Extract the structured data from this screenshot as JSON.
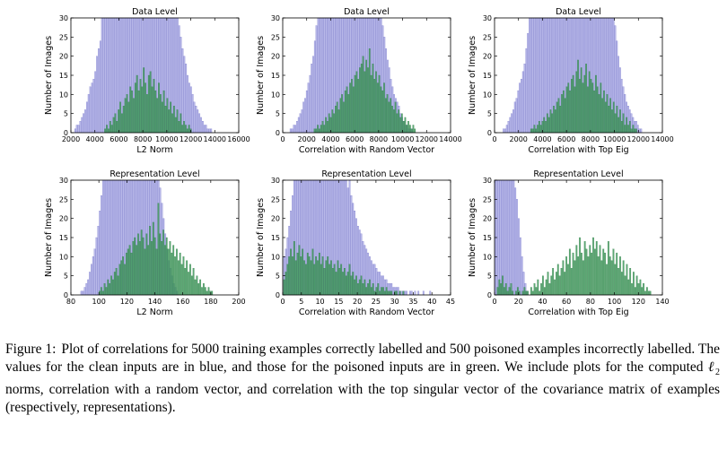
{
  "chart_data": [
    {
      "type": "bar",
      "title": "Data Level",
      "xlabel": "L2 Norm",
      "ylabel": "Number of Images",
      "xlim": [
        2000,
        16000
      ],
      "ylim": [
        0,
        30
      ],
      "xticks": [
        2000,
        4000,
        6000,
        8000,
        10000,
        12000,
        14000,
        16000
      ],
      "yticks": [
        0,
        5,
        10,
        15,
        20,
        25,
        30
      ],
      "grid": false,
      "bin_width": 140,
      "series": [
        {
          "name": "clean",
          "color": "#8c8cdc",
          "x_start": 2300,
          "values": [
            1,
            2,
            2,
            3,
            4,
            5,
            6,
            8,
            10,
            12,
            13,
            14,
            16,
            20,
            22,
            24,
            30,
            30,
            30,
            30,
            30,
            30,
            30,
            30,
            30,
            30,
            30,
            30,
            30,
            30,
            30,
            30,
            30,
            30,
            30,
            30,
            30,
            30,
            30,
            30,
            30,
            30,
            30,
            30,
            30,
            30,
            30,
            30,
            30,
            30,
            30,
            30,
            30,
            30,
            30,
            30,
            30,
            30,
            30,
            30,
            30,
            30,
            28,
            25,
            22,
            20,
            18,
            15,
            13,
            12,
            10,
            8,
            7,
            6,
            5,
            4,
            3,
            2,
            2,
            1,
            1,
            1
          ]
        },
        {
          "name": "poisoned",
          "color": "#3f9a5c",
          "x_start": 4800,
          "values": [
            1,
            2,
            1,
            3,
            2,
            4,
            5,
            3,
            6,
            8,
            5,
            7,
            9,
            10,
            8,
            12,
            11,
            9,
            13,
            15,
            11,
            14,
            12,
            17,
            13,
            10,
            15,
            16,
            12,
            14,
            11,
            9,
            13,
            10,
            8,
            11,
            7,
            9,
            6,
            8,
            5,
            7,
            4,
            6,
            3,
            5,
            2,
            3,
            2,
            1,
            2,
            1
          ]
        }
      ]
    },
    {
      "type": "bar",
      "title": "Data Level",
      "xlabel": "Correlation with Random Vector",
      "ylabel": "Number of Images",
      "xlim": [
        0,
        14000
      ],
      "ylim": [
        0,
        30
      ],
      "xticks": [
        0,
        2000,
        4000,
        6000,
        8000,
        10000,
        12000,
        14000
      ],
      "yticks": [
        0,
        5,
        10,
        15,
        20,
        25,
        30
      ],
      "grid": false,
      "bin_width": 135,
      "series": [
        {
          "name": "clean",
          "color": "#8c8cdc",
          "x_start": 600,
          "values": [
            1,
            1,
            2,
            2,
            3,
            4,
            5,
            6,
            8,
            9,
            11,
            13,
            15,
            18,
            20,
            24,
            28,
            30,
            30,
            30,
            30,
            30,
            30,
            30,
            30,
            30,
            30,
            30,
            30,
            30,
            30,
            30,
            30,
            30,
            30,
            30,
            30,
            30,
            30,
            30,
            30,
            30,
            30,
            30,
            30,
            30,
            30,
            30,
            30,
            30,
            30,
            30,
            30,
            30,
            30,
            30,
            30,
            28,
            25,
            22,
            19,
            17,
            14,
            12,
            10,
            9,
            8,
            7,
            5,
            4,
            3,
            2,
            2,
            1,
            1,
            1
          ]
        },
        {
          "name": "poisoned",
          "color": "#3f9a5c",
          "x_start": 2600,
          "values": [
            1,
            1,
            2,
            1,
            2,
            3,
            2,
            4,
            3,
            5,
            4,
            6,
            5,
            7,
            8,
            6,
            9,
            10,
            8,
            11,
            12,
            10,
            13,
            14,
            12,
            15,
            16,
            14,
            17,
            18,
            20,
            16,
            19,
            17,
            22,
            15,
            18,
            14,
            16,
            13,
            15,
            12,
            11,
            13,
            9,
            10,
            8,
            9,
            7,
            6,
            8,
            5,
            6,
            4,
            5,
            3,
            4,
            2,
            3,
            2,
            1,
            2,
            1
          ]
        }
      ]
    },
    {
      "type": "bar",
      "title": "Data Level",
      "xlabel": "Correlation with Top Eig",
      "ylabel": "Number of Images",
      "xlim": [
        0,
        14000
      ],
      "ylim": [
        0,
        30
      ],
      "xticks": [
        0,
        2000,
        4000,
        6000,
        8000,
        10000,
        12000,
        14000
      ],
      "yticks": [
        0,
        5,
        10,
        15,
        20,
        25,
        30
      ],
      "grid": false,
      "bin_width": 135,
      "series": [
        {
          "name": "clean",
          "color": "#8c8cdc",
          "x_start": 700,
          "values": [
            1,
            1,
            2,
            3,
            4,
            5,
            6,
            8,
            9,
            11,
            13,
            14,
            16,
            18,
            22,
            26,
            30,
            30,
            30,
            30,
            30,
            30,
            30,
            30,
            30,
            30,
            30,
            30,
            30,
            30,
            30,
            30,
            30,
            30,
            30,
            30,
            30,
            30,
            30,
            30,
            30,
            30,
            30,
            30,
            30,
            30,
            30,
            30,
            30,
            30,
            30,
            30,
            30,
            30,
            30,
            30,
            30,
            30,
            30,
            30,
            30,
            30,
            30,
            30,
            30,
            30,
            30,
            30,
            30,
            28,
            24,
            20,
            17,
            14,
            12,
            10,
            8,
            7,
            6,
            5,
            4,
            3,
            3,
            2,
            1,
            1
          ]
        },
        {
          "name": "poisoned",
          "color": "#3f9a5c",
          "x_start": 3000,
          "values": [
            1,
            1,
            2,
            1,
            2,
            3,
            2,
            3,
            4,
            3,
            5,
            4,
            6,
            5,
            7,
            6,
            8,
            9,
            7,
            10,
            11,
            9,
            12,
            13,
            11,
            14,
            15,
            12,
            16,
            19,
            14,
            17,
            13,
            15,
            18,
            12,
            16,
            14,
            13,
            11,
            15,
            12,
            10,
            13,
            9,
            11,
            8,
            10,
            7,
            9,
            6,
            8,
            5,
            7,
            4,
            6,
            3,
            5,
            2,
            4,
            2,
            3,
            1,
            2,
            1,
            1
          ]
        }
      ]
    },
    {
      "type": "bar",
      "title": "Representation Level",
      "xlabel": "L2 Norm",
      "ylabel": "Number of Images",
      "xlim": [
        80,
        200
      ],
      "ylim": [
        0,
        30
      ],
      "xticks": [
        80,
        100,
        120,
        140,
        160,
        180,
        200
      ],
      "yticks": [
        0,
        5,
        10,
        15,
        20,
        25,
        30
      ],
      "grid": false,
      "bin_width": 1.2,
      "series": [
        {
          "name": "clean",
          "color": "#8c8cdc",
          "x_start": 87,
          "values": [
            1,
            1,
            2,
            3,
            4,
            6,
            8,
            10,
            12,
            15,
            18,
            22,
            26,
            30,
            30,
            30,
            30,
            30,
            30,
            30,
            30,
            30,
            30,
            30,
            30,
            30,
            30,
            30,
            30,
            30,
            30,
            30,
            30,
            30,
            30,
            30,
            30,
            30,
            30,
            30,
            30,
            30,
            30,
            30,
            30,
            30,
            30,
            28,
            24,
            20,
            16,
            12,
            9,
            7,
            5,
            3,
            2,
            1
          ]
        },
        {
          "name": "poisoned",
          "color": "#3f9a5c",
          "x_start": 100,
          "values": [
            1,
            2,
            1,
            3,
            2,
            4,
            3,
            5,
            4,
            6,
            7,
            5,
            8,
            9,
            10,
            8,
            11,
            12,
            13,
            11,
            14,
            15,
            13,
            16,
            14,
            17,
            15,
            12,
            16,
            13,
            18,
            14,
            19,
            15,
            12,
            24,
            16,
            14,
            17,
            13,
            15,
            12,
            14,
            11,
            13,
            10,
            12,
            9,
            11,
            8,
            10,
            7,
            9,
            6,
            8,
            5,
            7,
            4,
            5,
            3,
            4,
            2,
            3,
            2,
            1,
            2,
            1,
            1
          ]
        }
      ]
    },
    {
      "type": "bar",
      "title": "Representation Level",
      "xlabel": "Correlation with Random Vector",
      "ylabel": "Number of Images",
      "xlim": [
        0,
        45
      ],
      "ylim": [
        0,
        30
      ],
      "xticks": [
        0,
        5,
        10,
        15,
        20,
        25,
        30,
        35,
        40,
        45
      ],
      "yticks": [
        0,
        5,
        10,
        15,
        20,
        25,
        30
      ],
      "grid": false,
      "bin_width": 0.45,
      "series": [
        {
          "name": "clean",
          "color": "#8c8cdc",
          "x_start": 0.2,
          "values": [
            10,
            12,
            15,
            18,
            22,
            26,
            30,
            30,
            30,
            30,
            30,
            30,
            30,
            30,
            30,
            30,
            30,
            30,
            30,
            30,
            30,
            30,
            30,
            30,
            30,
            30,
            30,
            30,
            30,
            30,
            30,
            30,
            30,
            30,
            30,
            30,
            30,
            30,
            28,
            30,
            26,
            24,
            22,
            20,
            18,
            17,
            16,
            14,
            13,
            12,
            11,
            10,
            9,
            8,
            8,
            7,
            6,
            6,
            5,
            5,
            4,
            4,
            3,
            3,
            3,
            2,
            2,
            2,
            2,
            1,
            1,
            1,
            1,
            1,
            0,
            1,
            1,
            0,
            1,
            0,
            1,
            0,
            0,
            1,
            0,
            0,
            0,
            1
          ]
        },
        {
          "name": "poisoned",
          "color": "#3f9a5c",
          "x_start": 0.2,
          "values": [
            4,
            6,
            8,
            10,
            12,
            10,
            14,
            9,
            11,
            13,
            10,
            12,
            9,
            8,
            11,
            10,
            9,
            12,
            8,
            10,
            9,
            11,
            8,
            10,
            7,
            9,
            10,
            8,
            9,
            7,
            8,
            6,
            9,
            7,
            8,
            6,
            7,
            5,
            6,
            8,
            5,
            6,
            4,
            5,
            3,
            4,
            5,
            3,
            4,
            2,
            3,
            4,
            2,
            3,
            1,
            2,
            3,
            1,
            2,
            2,
            1,
            2,
            1,
            1,
            1,
            0,
            1,
            1,
            0,
            1,
            0,
            1
          ]
        }
      ]
    },
    {
      "type": "bar",
      "title": "Representation Level",
      "xlabel": "Correlation with Top Eig",
      "ylabel": "Number of Images",
      "xlim": [
        0,
        140
      ],
      "ylim": [
        0,
        30
      ],
      "xticks": [
        0,
        20,
        40,
        60,
        80,
        100,
        120,
        140
      ],
      "yticks": [
        0,
        5,
        10,
        15,
        20,
        25,
        30
      ],
      "grid": false,
      "bin_width": 1.4,
      "series": [
        {
          "name": "clean",
          "color": "#8c8cdc",
          "x_start": 0,
          "values": [
            30,
            30,
            30,
            30,
            30,
            30,
            30,
            30,
            30,
            30,
            30,
            30,
            28,
            25,
            20,
            15,
            10,
            6,
            3,
            1
          ]
        },
        {
          "name": "poisoned",
          "color": "#3f9a5c",
          "x_start": 2,
          "values": [
            2,
            4,
            3,
            5,
            2,
            3,
            1,
            2,
            3,
            1,
            0,
            1,
            2,
            1,
            0,
            1,
            2,
            1,
            1,
            0,
            2,
            1,
            3,
            2,
            4,
            1,
            3,
            5,
            2,
            4,
            6,
            3,
            5,
            7,
            4,
            6,
            8,
            5,
            7,
            9,
            6,
            10,
            8,
            12,
            7,
            11,
            9,
            13,
            10,
            15,
            11,
            9,
            14,
            12,
            10,
            13,
            11,
            15,
            12,
            14,
            10,
            13,
            9,
            12,
            11,
            8,
            14,
            10,
            9,
            12,
            8,
            11,
            7,
            10,
            6,
            9,
            5,
            8,
            4,
            7,
            3,
            6,
            2,
            5,
            3,
            4,
            2,
            3,
            1,
            2,
            1,
            1
          ]
        }
      ]
    }
  ],
  "caption": {
    "label": "Figure 1:",
    "text_before": "Plot of correlations for 5000 training examples correctly labelled and 500 poisoned examples incorrectly labelled. The values for the clean inputs are in blue, and those for the poisoned inputs are in green. We include plots for the computed ",
    "ell": "ℓ",
    "ell_sub": "2",
    "text_after": " norms, correlation with a random vector, and correlation with the top singular vector of the covariance matrix of examples (respectively, representations)."
  }
}
